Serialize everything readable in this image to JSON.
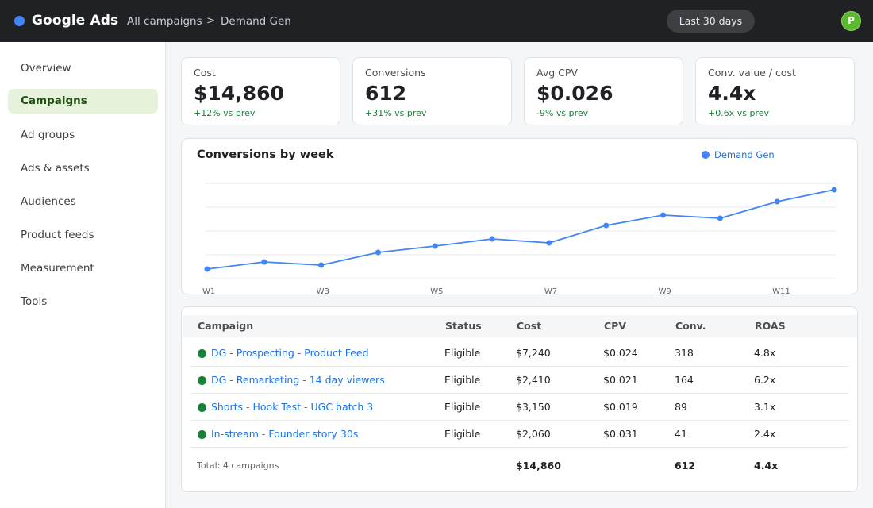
{
  "app": {
    "brand": "Google Ads"
  },
  "breadcrumb": {
    "root": "All campaigns",
    "separator": ">",
    "current": "Demand Gen"
  },
  "date_range": "Last 30 days",
  "user": {
    "initial": "P",
    "color": "#5cb82e"
  },
  "sidebar": {
    "items": [
      {
        "label": "Overview",
        "active": false
      },
      {
        "label": "Campaigns",
        "active": true
      },
      {
        "label": "Ad groups",
        "active": false
      },
      {
        "label": "Ads & assets",
        "active": false
      },
      {
        "label": "Audiences",
        "active": false
      },
      {
        "label": "Product feeds",
        "active": false
      },
      {
        "label": "Measurement",
        "active": false
      },
      {
        "label": "Tools",
        "active": false
      }
    ]
  },
  "kpis": [
    {
      "label": "Cost",
      "value": "$14,860",
      "delta": "+12% vs prev"
    },
    {
      "label": "Conversions",
      "value": "612",
      "delta": "+31% vs prev"
    },
    {
      "label": "Avg CPV",
      "value": "$0.026",
      "delta": "-9% vs prev"
    },
    {
      "label": "Conv. value / cost",
      "value": "4.4x",
      "delta": "+0.6x vs prev"
    }
  ],
  "chart_data": {
    "type": "line",
    "title": "Conversions by week",
    "categories": [
      "W1",
      "W2",
      "W3",
      "W4",
      "W5",
      "W6",
      "W7",
      "W8",
      "W9",
      "W10",
      "W11",
      "W12"
    ],
    "tick_labels": [
      "W1",
      "W3",
      "W5",
      "W7",
      "W9",
      "W11"
    ],
    "series": [
      {
        "name": "Demand Gen",
        "values": [
          12,
          21,
          17,
          33,
          41,
          50,
          45,
          67,
          80,
          76,
          97,
          112
        ]
      }
    ],
    "ylim": [
      0,
      120
    ],
    "grid": true,
    "legend": "top-right",
    "color": "#4285f4"
  },
  "table": {
    "headers": [
      "Campaign",
      "Status",
      "Cost",
      "CPV",
      "Conv.",
      "ROAS"
    ],
    "rows": [
      {
        "campaign": "DG - Prospecting - Product Feed",
        "status": "Eligible",
        "cost": "$7,240",
        "cpv": "$0.024",
        "conv": "318",
        "roas": "4.8x"
      },
      {
        "campaign": "DG - Remarketing - 14 day viewers",
        "status": "Eligible",
        "cost": "$2,410",
        "cpv": "$0.021",
        "conv": "164",
        "roas": "6.2x"
      },
      {
        "campaign": "Shorts - Hook Test - UGC batch 3",
        "status": "Eligible",
        "cost": "$3,150",
        "cpv": "$0.019",
        "conv": "89",
        "roas": "3.1x"
      },
      {
        "campaign": "In-stream - Founder story 30s",
        "status": "Eligible",
        "cost": "$2,060",
        "cpv": "$0.031",
        "conv": "41",
        "roas": "2.4x"
      }
    ],
    "total": {
      "label": "Total: 4 campaigns",
      "cost": "$14,860",
      "conv": "612",
      "roas": "4.4x"
    }
  },
  "colors": {
    "accent": "#1a73e8",
    "active_nav_bg": "#e6f2dc",
    "status_eligible": "#188038",
    "topbar": "#202124"
  }
}
